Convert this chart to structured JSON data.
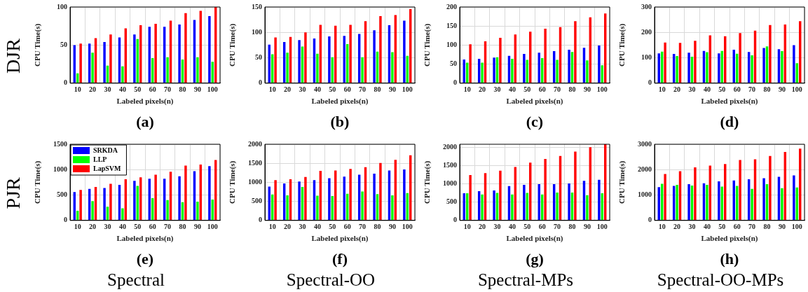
{
  "chart_data": [
    {
      "type": "bar",
      "title": "(a)",
      "xlabel": "Labeled pixels(n)",
      "ylabel": "CPU Time(s)",
      "annotations": [
        "DJR"
      ],
      "categories": [
        "10",
        "20",
        "30",
        "40",
        "50",
        "60",
        "70",
        "80",
        "90",
        "100"
      ],
      "ylim": [
        0,
        100
      ],
      "yticks": [
        0,
        50,
        100
      ],
      "grid": true,
      "series": [
        {
          "color": "#0000ff",
          "values": [
            50,
            52,
            54,
            60,
            64,
            74,
            74,
            77,
            83,
            88
          ]
        },
        {
          "color": "#00ff00",
          "values": [
            13,
            40,
            23,
            22,
            58,
            33,
            34,
            31,
            34,
            28
          ]
        },
        {
          "color": "#ff0000",
          "values": [
            52,
            59,
            64,
            72,
            76,
            78,
            82,
            92,
            95,
            100
          ]
        }
      ]
    },
    {
      "type": "bar",
      "title": "(b)",
      "xlabel": "Labeled pixels(n)",
      "ylabel": "CPU Time(s)",
      "categories": [
        "10",
        "20",
        "30",
        "40",
        "50",
        "60",
        "70",
        "80",
        "90",
        "100"
      ],
      "ylim": [
        0,
        150
      ],
      "yticks": [
        0,
        50,
        100,
        150
      ],
      "grid": true,
      "series": [
        {
          "color": "#0000ff",
          "values": [
            76,
            81,
            85,
            88,
            92,
            93,
            97,
            104,
            114,
            123
          ]
        },
        {
          "color": "#00ff00",
          "values": [
            57,
            60,
            72,
            58,
            51,
            77,
            51,
            62,
            61,
            54
          ]
        },
        {
          "color": "#ff0000",
          "values": [
            90,
            91,
            100,
            115,
            113,
            115,
            122,
            132,
            134,
            146
          ]
        }
      ]
    },
    {
      "type": "bar",
      "title": "(c)",
      "xlabel": "Labeled pixels(n)",
      "ylabel": "CPU Time(s)",
      "categories": [
        "10",
        "20",
        "30",
        "40",
        "50",
        "60",
        "70",
        "80",
        "90",
        "100"
      ],
      "ylim": [
        0,
        200
      ],
      "yticks": [
        0,
        50,
        100,
        150,
        200
      ],
      "grid": true,
      "series": [
        {
          "color": "#0000ff",
          "values": [
            62,
            64,
            67,
            72,
            77,
            80,
            84,
            88,
            93,
            99
          ]
        },
        {
          "color": "#00ff00",
          "values": [
            54,
            54,
            68,
            64,
            61,
            66,
            61,
            82,
            60,
            47
          ]
        },
        {
          "color": "#ff0000",
          "values": [
            102,
            110,
            119,
            128,
            135,
            143,
            147,
            163,
            173,
            183
          ]
        }
      ]
    },
    {
      "type": "bar",
      "title": "(d)",
      "xlabel": "Labeled pixels(n)",
      "ylabel": "CPU Time(s)",
      "categories": [
        "10",
        "20",
        "30",
        "40",
        "50",
        "60",
        "70",
        "80",
        "90",
        "100"
      ],
      "ylim": [
        0,
        300
      ],
      "yticks": [
        0,
        100,
        200,
        300
      ],
      "grid": true,
      "series": [
        {
          "color": "#0000ff",
          "values": [
            117,
            115,
            120,
            127,
            117,
            132,
            123,
            139,
            134,
            150
          ]
        },
        {
          "color": "#00ff00",
          "values": [
            124,
            107,
            104,
            122,
            127,
            116,
            110,
            145,
            126,
            79
          ]
        },
        {
          "color": "#ff0000",
          "values": [
            160,
            159,
            167,
            188,
            185,
            197,
            207,
            229,
            231,
            244
          ]
        }
      ]
    },
    {
      "type": "bar",
      "title": "(e)",
      "xlabel": "Labeled pixels(n)",
      "ylabel": "CPU Time(s)",
      "annotations": [
        "PJR",
        "Spectral"
      ],
      "categories": [
        "10",
        "20",
        "30",
        "40",
        "50",
        "60",
        "70",
        "80",
        "90",
        "100"
      ],
      "ylim": [
        0,
        1500
      ],
      "yticks": [
        0,
        500,
        1000,
        1500
      ],
      "grid": true,
      "legend": "top left",
      "series": [
        {
          "name": "SRKDA",
          "color": "#0000ff",
          "values": [
            560,
            620,
            640,
            700,
            780,
            820,
            820,
            870,
            970,
            1070
          ]
        },
        {
          "name": "LLP",
          "color": "#00ff00",
          "values": [
            190,
            380,
            270,
            240,
            680,
            440,
            400,
            360,
            370,
            410
          ]
        },
        {
          "name": "LapSVM",
          "color": "#ff0000",
          "values": [
            600,
            660,
            720,
            810,
            850,
            900,
            960,
            1080,
            1100,
            1190
          ]
        }
      ]
    },
    {
      "type": "bar",
      "title": "(f)",
      "xlabel": "Labeled pixels(n)",
      "ylabel": "CPU Time(s)",
      "annotations": [
        "Spectral-OO"
      ],
      "categories": [
        "10",
        "20",
        "30",
        "40",
        "50",
        "60",
        "70",
        "80",
        "90",
        "100"
      ],
      "ylim": [
        0,
        2000
      ],
      "yticks": [
        0,
        500,
        1000,
        1500,
        2000
      ],
      "grid": true,
      "series": [
        {
          "color": "#0000ff",
          "values": [
            890,
            970,
            1020,
            1060,
            1110,
            1150,
            1200,
            1230,
            1310,
            1340
          ]
        },
        {
          "color": "#00ff00",
          "values": [
            680,
            660,
            880,
            650,
            640,
            700,
            760,
            690,
            660,
            720
          ]
        },
        {
          "color": "#ff0000",
          "values": [
            1060,
            1080,
            1140,
            1300,
            1310,
            1350,
            1400,
            1510,
            1590,
            1710
          ]
        }
      ]
    },
    {
      "type": "bar",
      "title": "(g)",
      "xlabel": "Labeled pixels(n)",
      "ylabel": "CPU Time(s)",
      "annotations": [
        "Spectral-MPs"
      ],
      "categories": [
        "10",
        "20",
        "30",
        "40",
        "50",
        "60",
        "70",
        "80",
        "90",
        "100"
      ],
      "ylim": [
        0,
        2080
      ],
      "yticks": [
        0,
        500,
        1000,
        1500,
        2000
      ],
      "grid": true,
      "series": [
        {
          "color": "#0000ff",
          "values": [
            740,
            800,
            820,
            940,
            970,
            990,
            990,
            1010,
            1080,
            1110
          ]
        },
        {
          "color": "#00ff00",
          "values": [
            740,
            710,
            750,
            710,
            750,
            710,
            760,
            760,
            690,
            740
          ]
        },
        {
          "color": "#ff0000",
          "values": [
            1240,
            1290,
            1360,
            1460,
            1580,
            1680,
            1760,
            1880,
            2000,
            2080
          ]
        }
      ]
    },
    {
      "type": "bar",
      "title": "(h)",
      "xlabel": "Labeled pixels(n)",
      "ylabel": "CPU Time(s)",
      "annotations": [
        "Spectral-OO-MPs"
      ],
      "categories": [
        "10",
        "20",
        "30",
        "40",
        "50",
        "60",
        "70",
        "80",
        "90",
        "100"
      ],
      "ylim": [
        0,
        3000
      ],
      "yticks": [
        0,
        1000,
        2000,
        3000
      ],
      "grid": true,
      "series": [
        {
          "color": "#0000ff",
          "values": [
            1310,
            1360,
            1430,
            1460,
            1540,
            1570,
            1620,
            1660,
            1720,
            1770
          ]
        },
        {
          "color": "#00ff00",
          "values": [
            1440,
            1400,
            1370,
            1400,
            1330,
            1360,
            1240,
            1430,
            1270,
            1300
          ]
        },
        {
          "color": "#ff0000",
          "values": [
            1830,
            1940,
            2090,
            2160,
            2220,
            2380,
            2410,
            2540,
            2700,
            2830
          ]
        }
      ]
    }
  ]
}
